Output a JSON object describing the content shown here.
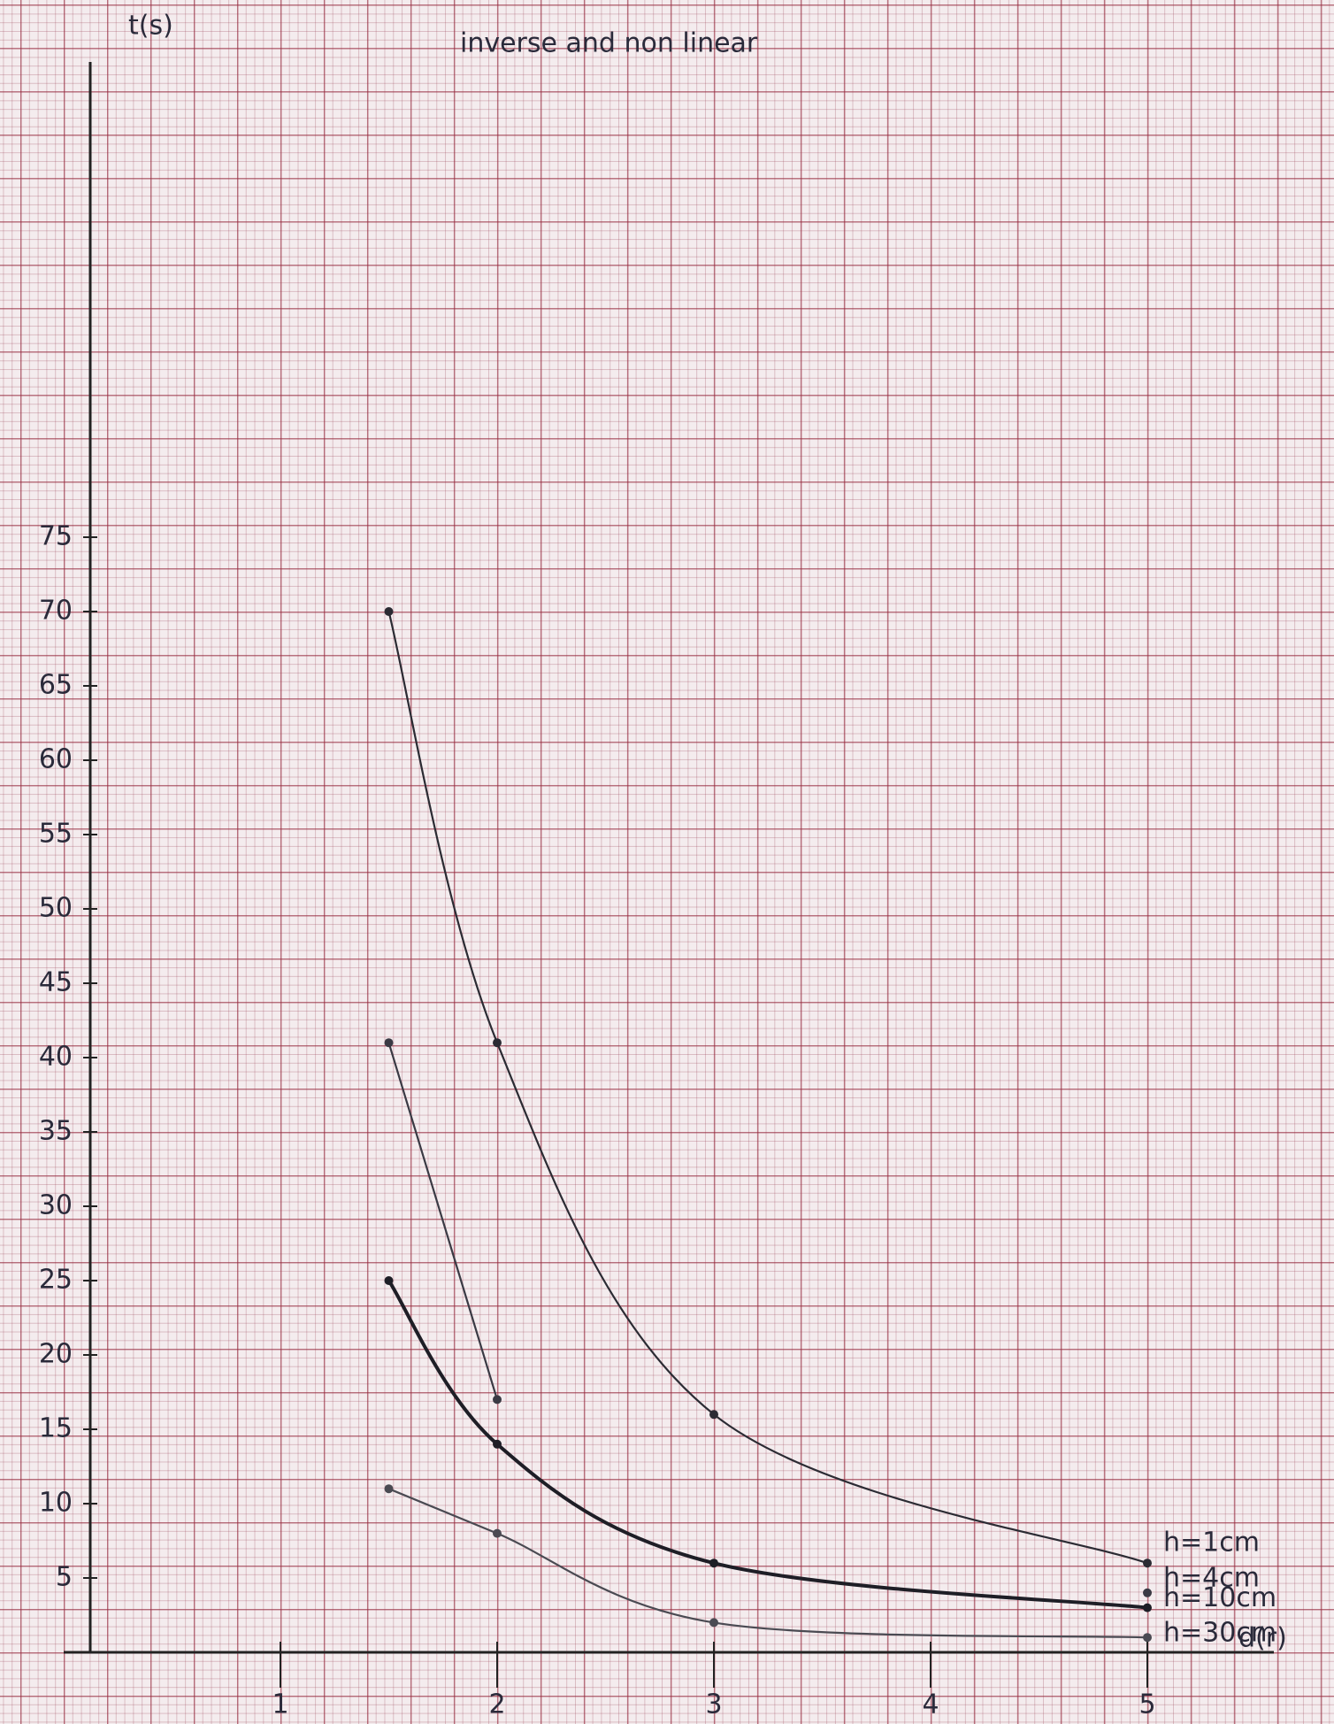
{
  "chart_data": {
    "type": "line",
    "title": "inverse and non linear",
    "y_label": "t(s)",
    "x_label": "d(r)",
    "x": [
      1.5,
      2,
      3,
      5
    ],
    "series": [
      {
        "name": "h=1cm",
        "color": "#2b2b33",
        "values": [
          70,
          41,
          16,
          6
        ]
      },
      {
        "name": "h=4cm",
        "color": "#3a3a44",
        "values": [
          41,
          17,
          null,
          4
        ]
      },
      {
        "name": "h=10cm",
        "color": "#1e1e26",
        "values": [
          25,
          14,
          6,
          3
        ]
      },
      {
        "name": "h=30cm",
        "color": "#4a4a52",
        "values": [
          11,
          8,
          2,
          1
        ]
      }
    ],
    "xlim": [
      0,
      5.8
    ],
    "ylim": [
      0,
      110
    ],
    "xticks": [
      1,
      2,
      3,
      4,
      5
    ],
    "yticks": [
      5,
      10,
      15,
      20,
      25,
      30,
      35,
      40,
      45,
      50,
      55,
      60,
      65,
      70,
      75
    ]
  }
}
